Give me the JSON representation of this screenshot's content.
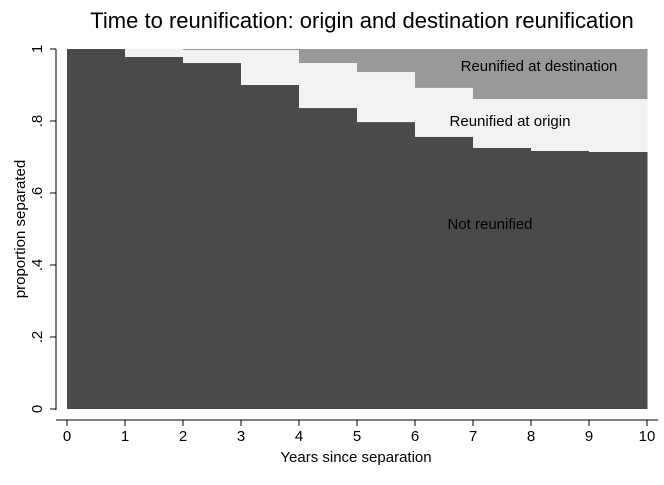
{
  "chart_data": {
    "type": "stacked-step-area",
    "title": "Time to reunification: origin and destination reunification",
    "x_label": "Years since separation",
    "y_label": "proportion separated",
    "x": [
      0,
      1,
      2,
      3,
      4,
      5,
      6,
      7,
      8,
      9
    ],
    "series": [
      {
        "name": "Not reunified",
        "color": "#4a4a4a",
        "values": [
          1.0,
          0.978,
          0.961,
          0.9,
          0.836,
          0.797,
          0.756,
          0.725,
          0.717,
          0.714
        ]
      },
      {
        "name": "Reunified at origin",
        "color": "#f2f2f2",
        "values": [
          0,
          0.022,
          0.036,
          0.097,
          0.125,
          0.139,
          0.136,
          0.136,
          0.144,
          0.147
        ]
      },
      {
        "name": "Reunified at destination",
        "color": "#999999",
        "values": [
          0,
          0,
          0.003,
          0.003,
          0.039,
          0.064,
          0.108,
          0.139,
          0.139,
          0.139
        ]
      }
    ],
    "xlim": [
      0,
      10
    ],
    "xticks": [
      0,
      1,
      2,
      3,
      4,
      5,
      6,
      7,
      8,
      9,
      10
    ],
    "ylim": [
      0,
      1
    ],
    "yticks": [
      0,
      {
        "value": 0.2,
        "label": ".2"
      },
      {
        "value": 0.4,
        "label": ".4"
      },
      {
        "value": 0.6,
        "label": ".6"
      },
      {
        "value": 0.8,
        "label": ".8"
      },
      1
    ]
  }
}
